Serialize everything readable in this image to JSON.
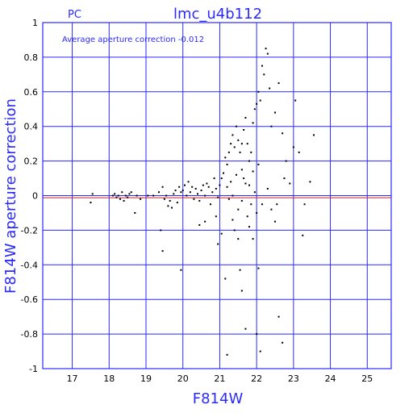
{
  "chart_data": {
    "type": "scatter",
    "title": "lmc_u4b112",
    "subtitle": "PC",
    "annotation": "Average aperture correction  -0.012",
    "xlabel": "F814W",
    "ylabel": "F814W aperture correction",
    "xlim": [
      16.2,
      25.65
    ],
    "ylim": [
      -1,
      1
    ],
    "xticks": [
      17,
      18,
      19,
      20,
      21,
      22,
      23,
      24,
      25
    ],
    "yticks": [
      1,
      0.8,
      0.6,
      0.4,
      0.2,
      0,
      -0.2,
      -0.4,
      -0.6,
      -0.8,
      -1
    ],
    "grid": true,
    "reference_line": {
      "y": -0.012,
      "color": "#d02020"
    },
    "colors": {
      "grid": "#2a2aff",
      "points": "#000000",
      "reference": "#d02020"
    },
    "points": [
      [
        17.55,
        0.01
      ],
      [
        17.5,
        -0.04
      ],
      [
        18.1,
        0.0
      ],
      [
        18.15,
        0.01
      ],
      [
        18.2,
        -0.01
      ],
      [
        18.25,
        0.0
      ],
      [
        18.3,
        -0.02
      ],
      [
        18.35,
        0.02
      ],
      [
        18.4,
        -0.03
      ],
      [
        18.45,
        0.0
      ],
      [
        18.5,
        -0.01
      ],
      [
        18.55,
        0.01
      ],
      [
        18.6,
        0.02
      ],
      [
        18.7,
        -0.1
      ],
      [
        18.75,
        0.0
      ],
      [
        18.85,
        -0.02
      ],
      [
        19.05,
        0.0
      ],
      [
        19.2,
        0.0
      ],
      [
        19.35,
        0.02
      ],
      [
        19.45,
        0.05
      ],
      [
        19.5,
        -0.02
      ],
      [
        19.55,
        0.0
      ],
      [
        19.6,
        -0.06
      ],
      [
        19.65,
        -0.03
      ],
      [
        19.7,
        -0.07
      ],
      [
        19.75,
        0.01
      ],
      [
        19.8,
        0.03
      ],
      [
        19.85,
        -0.04
      ],
      [
        19.9,
        0.05
      ],
      [
        19.95,
        0.02
      ],
      [
        20.0,
        0.03
      ],
      [
        20.05,
        0.06
      ],
      [
        20.1,
        0.0
      ],
      [
        20.15,
        0.08
      ],
      [
        20.2,
        0.02
      ],
      [
        20.25,
        0.05
      ],
      [
        20.3,
        -0.02
      ],
      [
        20.35,
        0.04
      ],
      [
        20.4,
        0.01
      ],
      [
        20.45,
        -0.03
      ],
      [
        20.5,
        0.03
      ],
      [
        20.55,
        0.06
      ],
      [
        20.6,
        0.0
      ],
      [
        20.65,
        0.07
      ],
      [
        20.7,
        0.05
      ],
      [
        20.75,
        -0.05
      ],
      [
        20.8,
        0.02
      ],
      [
        20.85,
        0.1
      ],
      [
        20.9,
        0.04
      ],
      [
        20.95,
        -0.01
      ],
      [
        21.0,
        0.06
      ],
      [
        21.05,
        0.1
      ],
      [
        21.1,
        0.13
      ],
      [
        21.15,
        0.22
      ],
      [
        21.2,
        0.18
      ],
      [
        21.25,
        0.25
      ],
      [
        21.3,
        0.3
      ],
      [
        21.35,
        0.35
      ],
      [
        21.4,
        0.28
      ],
      [
        21.45,
        0.4
      ],
      [
        21.5,
        0.32
      ],
      [
        21.55,
        0.25
      ],
      [
        21.6,
        0.3
      ],
      [
        21.65,
        0.38
      ],
      [
        21.7,
        0.45
      ],
      [
        21.75,
        0.3
      ],
      [
        21.8,
        0.2
      ],
      [
        21.85,
        0.25
      ],
      [
        21.9,
        0.42
      ],
      [
        21.95,
        0.5
      ],
      [
        22.0,
        0.53
      ],
      [
        22.05,
        0.6
      ],
      [
        22.1,
        0.55
      ],
      [
        22.15,
        0.75
      ],
      [
        22.2,
        0.7
      ],
      [
        22.25,
        0.85
      ],
      [
        22.3,
        0.82
      ],
      [
        22.35,
        0.62
      ],
      [
        22.4,
        0.4
      ],
      [
        22.5,
        0.48
      ],
      [
        22.6,
        0.65
      ],
      [
        22.7,
        0.36
      ],
      [
        22.75,
        0.1
      ],
      [
        22.8,
        0.2
      ],
      [
        22.9,
        0.07
      ],
      [
        23.0,
        0.28
      ],
      [
        23.05,
        0.55
      ],
      [
        23.15,
        0.25
      ],
      [
        23.3,
        -0.05
      ],
      [
        23.45,
        0.08
      ],
      [
        23.55,
        0.35
      ],
      [
        19.4,
        -0.2
      ],
      [
        19.45,
        -0.32
      ],
      [
        19.95,
        -0.43
      ],
      [
        20.45,
        -0.17
      ],
      [
        20.6,
        -0.15
      ],
      [
        20.9,
        -0.12
      ],
      [
        20.95,
        -0.28
      ],
      [
        21.05,
        -0.22
      ],
      [
        21.15,
        -0.48
      ],
      [
        21.2,
        -0.92
      ],
      [
        21.35,
        -0.14
      ],
      [
        21.4,
        -0.2
      ],
      [
        21.5,
        -0.25
      ],
      [
        21.55,
        -0.43
      ],
      [
        21.6,
        -0.55
      ],
      [
        21.7,
        -0.77
      ],
      [
        21.75,
        -0.12
      ],
      [
        21.8,
        -0.18
      ],
      [
        21.9,
        -0.25
      ],
      [
        22.0,
        -0.8
      ],
      [
        22.05,
        -0.42
      ],
      [
        22.1,
        -0.9
      ],
      [
        22.5,
        -0.15
      ],
      [
        22.6,
        -0.7
      ],
      [
        22.7,
        -0.85
      ],
      [
        23.25,
        -0.23
      ],
      [
        21.2,
        0.05
      ],
      [
        21.3,
        0.08
      ],
      [
        21.45,
        0.12
      ],
      [
        21.6,
        0.15
      ],
      [
        21.65,
        0.1
      ],
      [
        21.8,
        0.06
      ],
      [
        21.9,
        0.14
      ],
      [
        21.95,
        0.02
      ],
      [
        22.05,
        0.18
      ],
      [
        22.15,
        -0.05
      ],
      [
        22.3,
        0.04
      ],
      [
        22.4,
        -0.08
      ],
      [
        22.55,
        -0.05
      ],
      [
        21.25,
        -0.02
      ],
      [
        21.35,
        0.0
      ],
      [
        21.5,
        -0.08
      ],
      [
        21.6,
        -0.03
      ],
      [
        21.7,
        0.07
      ],
      [
        21.85,
        -0.05
      ],
      [
        22.0,
        -0.1
      ]
    ]
  }
}
